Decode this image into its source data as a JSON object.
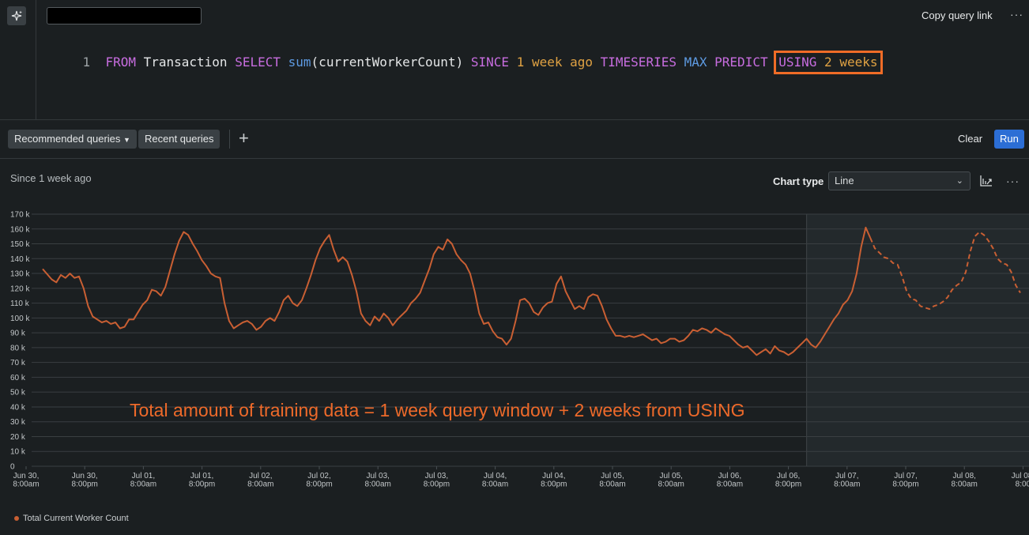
{
  "editor": {
    "copy_link_label": "Copy query link",
    "more_label": "···",
    "line_number": "1",
    "query_tokens": [
      {
        "t": "FROM",
        "c": "kw"
      },
      {
        "t": " Transaction ",
        "c": "id"
      },
      {
        "t": "SELECT",
        "c": "kw"
      },
      {
        "t": " ",
        "c": "id"
      },
      {
        "t": "sum",
        "c": "fn"
      },
      {
        "t": "(currentWorkerCount) ",
        "c": "id"
      },
      {
        "t": "SINCE",
        "c": "kw"
      },
      {
        "t": " ",
        "c": "id"
      },
      {
        "t": "1",
        "c": "num"
      },
      {
        "t": " ",
        "c": "id"
      },
      {
        "t": "week ago",
        "c": "num"
      },
      {
        "t": " ",
        "c": "id"
      },
      {
        "t": "TIMESERIES",
        "c": "kw"
      },
      {
        "t": " ",
        "c": "id"
      },
      {
        "t": "MAX",
        "c": "fn"
      },
      {
        "t": " ",
        "c": "id"
      },
      {
        "t": "PREDICT",
        "c": "kw"
      },
      {
        "t": " ",
        "c": "id"
      }
    ],
    "highlight_tokens": [
      {
        "t": "USING",
        "c": "kw"
      },
      {
        "t": " ",
        "c": "id"
      },
      {
        "t": "2",
        "c": "num"
      },
      {
        "t": " ",
        "c": "id"
      },
      {
        "t": "weeks",
        "c": "num"
      }
    ]
  },
  "toolbar": {
    "recommended_label": "Recommended queries",
    "recent_label": "Recent queries",
    "add_label": "+",
    "clear_label": "Clear",
    "run_label": "Run"
  },
  "chart_header": {
    "since_label": "Since 1 week ago",
    "chart_type_label": "Chart type",
    "chart_type_value": "Line",
    "more_label": "···"
  },
  "annotation": "Total amount of training data = 1 week query window + 2 weeks from USING",
  "chart_data": {
    "type": "line",
    "ylim": [
      0,
      170000
    ],
    "yticks": [
      "0",
      "10 k",
      "20 k",
      "30 k",
      "40 k",
      "50 k",
      "60 k",
      "70 k",
      "80 k",
      "90 k",
      "100 k",
      "110 k",
      "120 k",
      "130 k",
      "140 k",
      "150 k",
      "160 k",
      "170 k"
    ],
    "xticks": [
      [
        "Jun 30,",
        "8:00am"
      ],
      [
        "Jun 30,",
        "8:00pm"
      ],
      [
        "Jul 01,",
        "8:00am"
      ],
      [
        "Jul 01,",
        "8:00pm"
      ],
      [
        "Jul 02,",
        "8:00am"
      ],
      [
        "Jul 02,",
        "8:00pm"
      ],
      [
        "Jul 03,",
        "8:00am"
      ],
      [
        "Jul 03,",
        "8:00pm"
      ],
      [
        "Jul 04,",
        "8:00am"
      ],
      [
        "Jul 04,",
        "8:00pm"
      ],
      [
        "Jul 05,",
        "8:00am"
      ],
      [
        "Jul 05,",
        "8:00am"
      ],
      [
        "Jul 06,",
        "8:00am"
      ],
      [
        "Jul 06,",
        "8:00pm"
      ],
      [
        "Jul 07,",
        "8:00am"
      ],
      [
        "Jul 07,",
        "8:00pm"
      ],
      [
        "Jul 08,",
        "8:00am"
      ],
      [
        "Jul 08,",
        "8:00"
      ]
    ],
    "x_hours_range": [
      0,
      203
    ],
    "forecast_start_hour": 168,
    "series": [
      {
        "name": "Total Current Worker Count",
        "color": "#c95f33",
        "actual": [
          [
            0,
            133000
          ],
          [
            2,
            126000
          ],
          [
            3,
            124000
          ],
          [
            4,
            129000
          ],
          [
            5,
            127000
          ],
          [
            6,
            130000
          ],
          [
            7,
            127000
          ],
          [
            8,
            128000
          ],
          [
            9,
            120000
          ],
          [
            10,
            108000
          ],
          [
            11,
            101000
          ],
          [
            12,
            99000
          ],
          [
            13,
            97000
          ],
          [
            14,
            98000
          ],
          [
            15,
            96000
          ],
          [
            16,
            97000
          ],
          [
            17,
            93000
          ],
          [
            18,
            94000
          ],
          [
            19,
            99000
          ],
          [
            20,
            99000
          ],
          [
            21,
            104000
          ],
          [
            22,
            109000
          ],
          [
            23,
            112000
          ],
          [
            24,
            119000
          ],
          [
            25,
            118000
          ],
          [
            26,
            115000
          ],
          [
            27,
            121000
          ],
          [
            28,
            132000
          ],
          [
            29,
            143000
          ],
          [
            30,
            152000
          ],
          [
            31,
            158000
          ],
          [
            32,
            156000
          ],
          [
            33,
            150000
          ],
          [
            34,
            145000
          ],
          [
            35,
            139000
          ],
          [
            36,
            135000
          ],
          [
            37,
            130000
          ],
          [
            38,
            128000
          ],
          [
            39,
            127000
          ],
          [
            40,
            110000
          ],
          [
            41,
            98000
          ],
          [
            42,
            93000
          ],
          [
            43,
            95000
          ],
          [
            44,
            97000
          ],
          [
            45,
            98000
          ],
          [
            46,
            96000
          ],
          [
            47,
            92000
          ],
          [
            48,
            94000
          ],
          [
            49,
            98000
          ],
          [
            50,
            100000
          ],
          [
            51,
            98000
          ],
          [
            52,
            104000
          ],
          [
            53,
            112000
          ],
          [
            54,
            115000
          ],
          [
            55,
            110000
          ],
          [
            56,
            108000
          ],
          [
            57,
            112000
          ],
          [
            58,
            120000
          ],
          [
            59,
            129000
          ],
          [
            60,
            139000
          ],
          [
            61,
            147000
          ],
          [
            62,
            152000
          ],
          [
            63,
            156000
          ],
          [
            64,
            146000
          ],
          [
            65,
            138000
          ],
          [
            66,
            141000
          ],
          [
            67,
            138000
          ],
          [
            68,
            129000
          ],
          [
            69,
            118000
          ],
          [
            70,
            103000
          ],
          [
            71,
            98000
          ],
          [
            72,
            95000
          ],
          [
            73,
            101000
          ],
          [
            74,
            98000
          ],
          [
            75,
            103000
          ],
          [
            76,
            100000
          ],
          [
            77,
            95000
          ],
          [
            78,
            99000
          ],
          [
            79,
            102000
          ],
          [
            80,
            105000
          ],
          [
            81,
            110000
          ],
          [
            82,
            113000
          ],
          [
            83,
            117000
          ],
          [
            84,
            125000
          ],
          [
            85,
            133000
          ],
          [
            86,
            143000
          ],
          [
            87,
            148000
          ],
          [
            88,
            146000
          ],
          [
            89,
            153000
          ],
          [
            90,
            150000
          ],
          [
            91,
            143000
          ],
          [
            92,
            139000
          ],
          [
            93,
            136000
          ],
          [
            94,
            130000
          ],
          [
            95,
            118000
          ],
          [
            96,
            103000
          ],
          [
            97,
            96000
          ],
          [
            98,
            97000
          ],
          [
            99,
            91000
          ],
          [
            100,
            87000
          ],
          [
            101,
            86000
          ],
          [
            102,
            82000
          ],
          [
            103,
            86000
          ],
          [
            104,
            98000
          ],
          [
            105,
            112000
          ],
          [
            106,
            113000
          ],
          [
            107,
            110000
          ],
          [
            108,
            104000
          ],
          [
            109,
            102000
          ],
          [
            110,
            107000
          ],
          [
            111,
            110000
          ],
          [
            112,
            111000
          ],
          [
            113,
            123000
          ],
          [
            114,
            128000
          ],
          [
            115,
            118000
          ],
          [
            116,
            112000
          ],
          [
            117,
            106000
          ],
          [
            118,
            108000
          ],
          [
            119,
            106000
          ],
          [
            120,
            114000
          ],
          [
            121,
            116000
          ],
          [
            122,
            115000
          ],
          [
            123,
            108000
          ],
          [
            124,
            99000
          ],
          [
            125,
            93000
          ],
          [
            126,
            88000
          ],
          [
            127,
            88000
          ],
          [
            128,
            87000
          ],
          [
            129,
            88000
          ],
          [
            130,
            87000
          ],
          [
            131,
            88000
          ],
          [
            132,
            89000
          ],
          [
            133,
            87000
          ],
          [
            134,
            85000
          ],
          [
            135,
            86000
          ],
          [
            136,
            83000
          ],
          [
            137,
            84000
          ],
          [
            138,
            86000
          ],
          [
            139,
            86000
          ],
          [
            140,
            84000
          ],
          [
            141,
            85000
          ],
          [
            142,
            88000
          ],
          [
            143,
            92000
          ],
          [
            144,
            91000
          ],
          [
            145,
            93000
          ],
          [
            146,
            92000
          ],
          [
            147,
            90000
          ],
          [
            148,
            93000
          ],
          [
            149,
            91000
          ],
          [
            150,
            89000
          ],
          [
            151,
            88000
          ],
          [
            152,
            85000
          ],
          [
            153,
            82000
          ],
          [
            154,
            80000
          ],
          [
            155,
            81000
          ],
          [
            156,
            78000
          ],
          [
            157,
            75000
          ],
          [
            158,
            77000
          ],
          [
            159,
            79000
          ],
          [
            160,
            76000
          ],
          [
            161,
            81000
          ],
          [
            162,
            78000
          ],
          [
            163,
            77000
          ],
          [
            164,
            75000
          ],
          [
            165,
            77000
          ],
          [
            166,
            80000
          ],
          [
            167,
            83000
          ],
          [
            168,
            86000
          ],
          [
            169,
            82000
          ],
          [
            170,
            80000
          ],
          [
            171,
            84000
          ],
          [
            172,
            89000
          ],
          [
            173,
            94000
          ],
          [
            174,
            99000
          ],
          [
            175,
            103000
          ],
          [
            176,
            109000
          ],
          [
            177,
            112000
          ],
          [
            178,
            118000
          ],
          [
            179,
            130000
          ],
          [
            180,
            148000
          ],
          [
            181,
            161000
          ],
          [
            182,
            154000
          ]
        ],
        "forecast": [
          [
            182,
            154000
          ],
          [
            183,
            147000
          ],
          [
            184,
            144000
          ],
          [
            185,
            141000
          ],
          [
            186,
            140000
          ],
          [
            187,
            137000
          ],
          [
            188,
            136000
          ],
          [
            189,
            128000
          ],
          [
            190,
            118000
          ],
          [
            191,
            113000
          ],
          [
            192,
            112000
          ],
          [
            193,
            108000
          ],
          [
            194,
            107000
          ],
          [
            195,
            106000
          ],
          [
            196,
            108000
          ],
          [
            197,
            109000
          ],
          [
            198,
            111000
          ],
          [
            199,
            114000
          ],
          [
            200,
            119000
          ],
          [
            201,
            122000
          ],
          [
            202,
            124000
          ],
          [
            203,
            131000
          ],
          [
            204,
            145000
          ],
          [
            205,
            155000
          ],
          [
            206,
            158000
          ],
          [
            207,
            156000
          ],
          [
            208,
            152000
          ],
          [
            209,
            147000
          ],
          [
            210,
            140000
          ],
          [
            211,
            137000
          ],
          [
            212,
            136000
          ],
          [
            213,
            131000
          ],
          [
            214,
            122000
          ],
          [
            215,
            117000
          ]
        ]
      }
    ]
  }
}
